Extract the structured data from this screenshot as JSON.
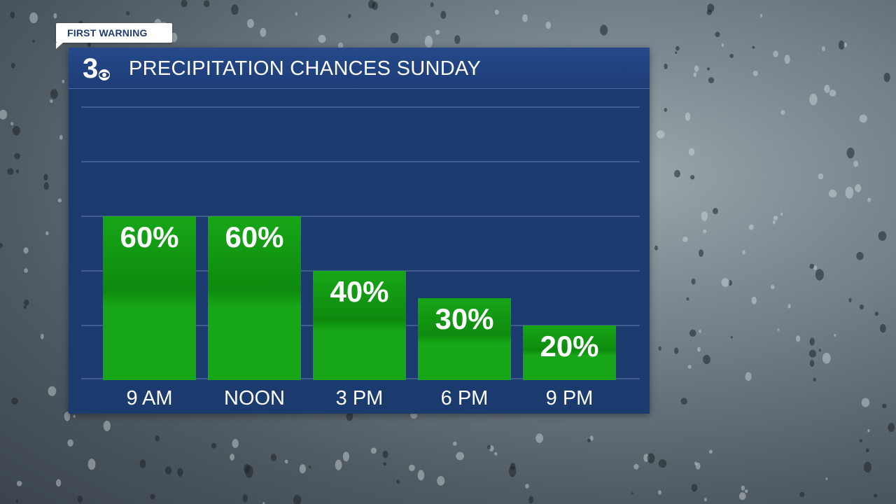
{
  "banner": {
    "label": "FIRST WARNING"
  },
  "logo": {
    "text": "3",
    "name": "logo-3-icon"
  },
  "header": {
    "title": "PRECIPITATION CHANCES SUNDAY"
  },
  "colors": {
    "panel": "#1b3a6e",
    "bar": "#17a617",
    "bar_dark": "#0e8a0e",
    "text": "#ffffff",
    "banner_text": "#1f3b71"
  },
  "chart_data": {
    "type": "bar",
    "title": "PRECIPITATION CHANCES SUNDAY",
    "categories": [
      "9 AM",
      "NOON",
      "3 PM",
      "6 PM",
      "9 PM"
    ],
    "values": [
      60,
      60,
      40,
      30,
      20
    ],
    "labels": [
      "60%",
      "60%",
      "40%",
      "30%",
      "20%"
    ],
    "ylim": [
      0,
      100
    ],
    "grid": true
  }
}
